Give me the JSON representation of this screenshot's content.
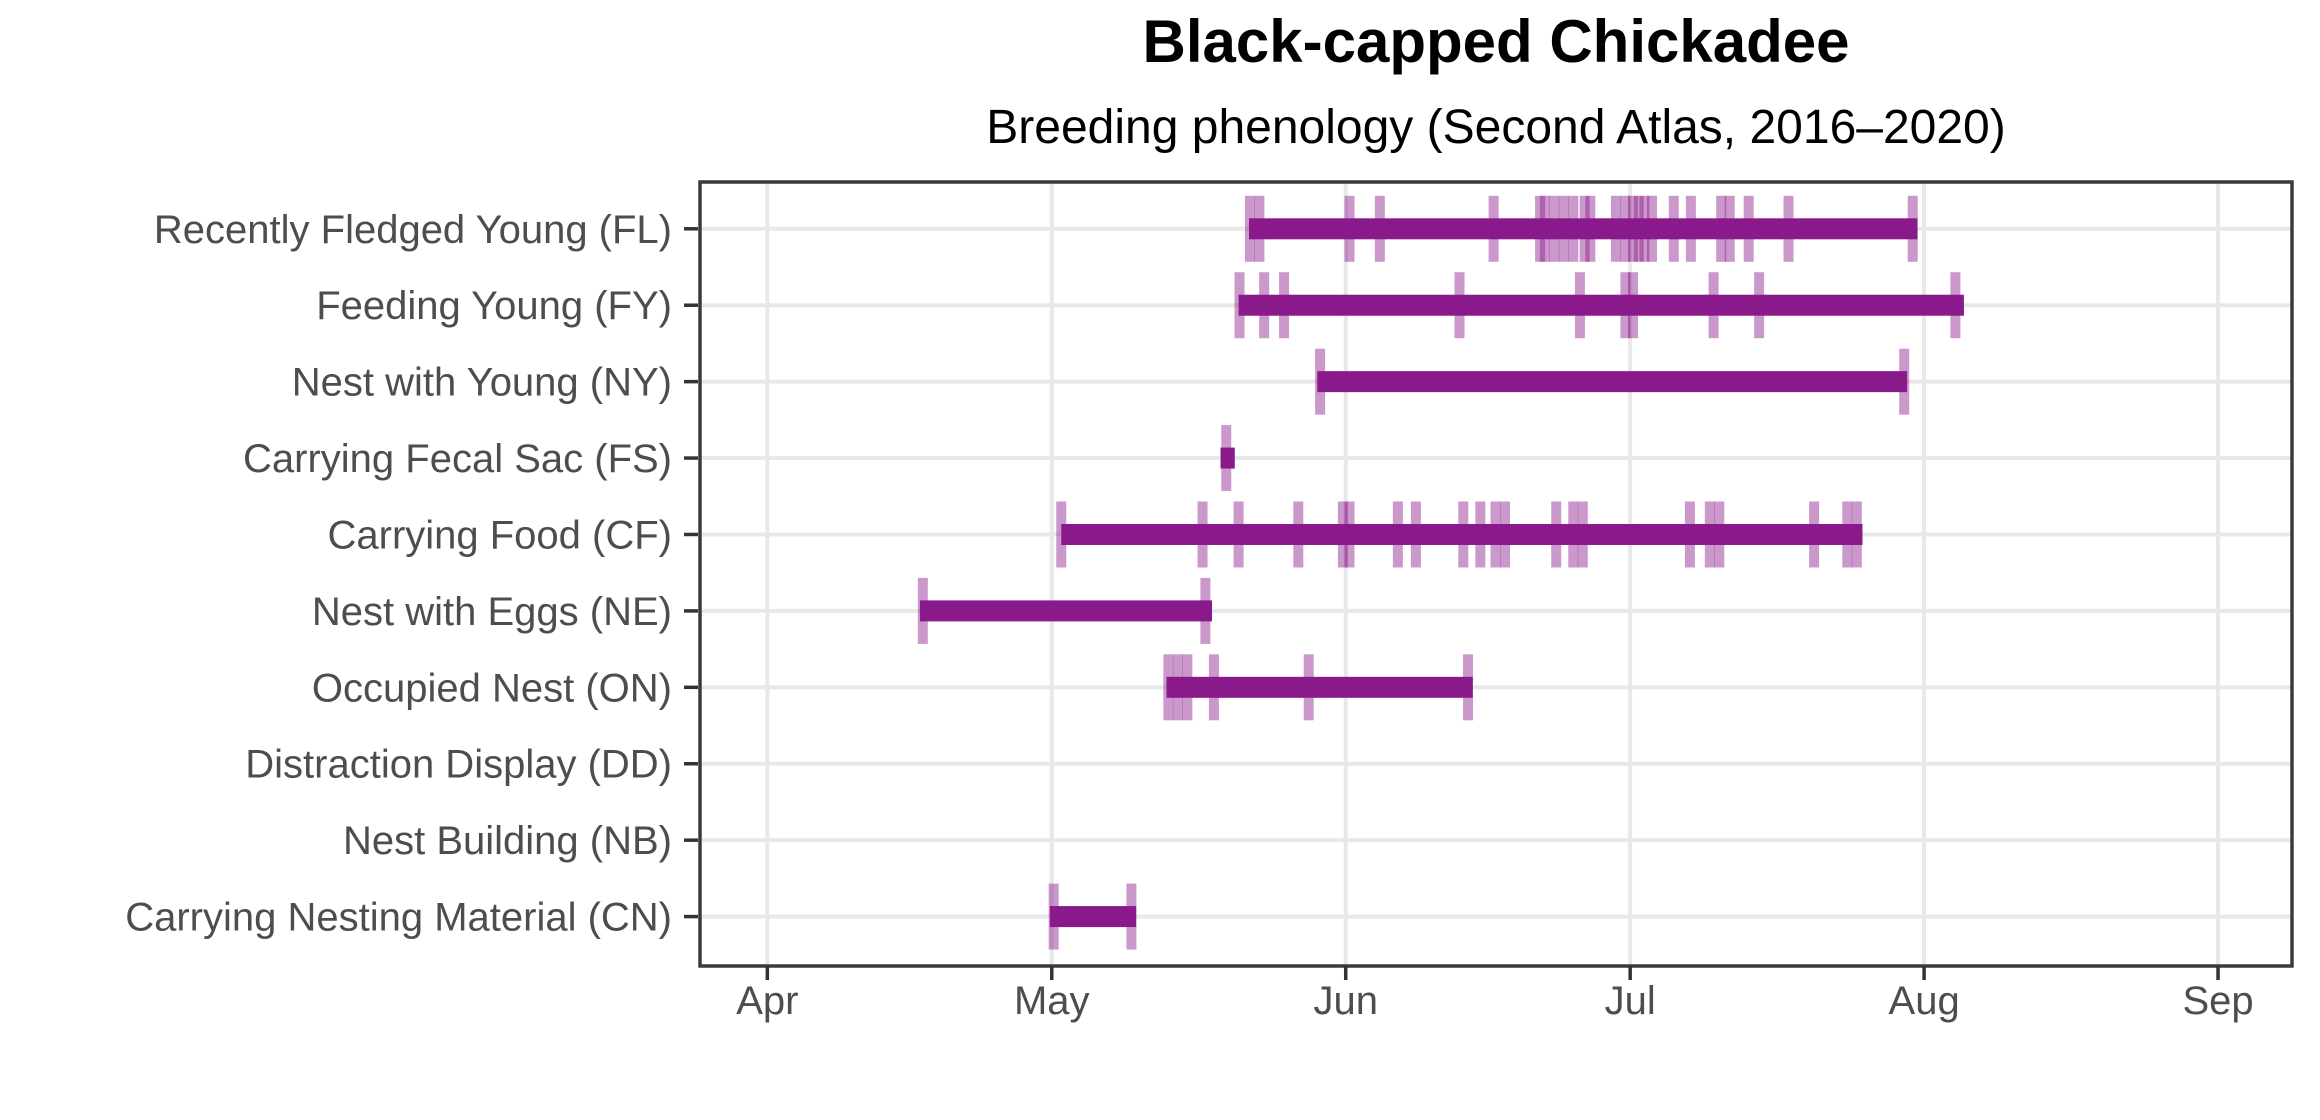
{
  "title": "Black-capped Chickadee",
  "subtitle": "Breeding phenology (Second Atlas, 2016–2020)",
  "chart_data": {
    "type": "range_bar_timeline",
    "title": "Black-capped Chickadee",
    "subtitle": "Breeding phenology (Second Atlas, 2016–2020)",
    "x_axis": {
      "unit": "day_of_year",
      "tick_labels": [
        "Apr",
        "May",
        "Jun",
        "Jul",
        "Aug",
        "Sep"
      ],
      "tick_days": [
        91,
        121,
        152,
        182,
        213,
        244
      ],
      "domain_days": [
        83.9,
        251.8
      ],
      "grid": true
    },
    "y_axis": {
      "grid": true
    },
    "colors": {
      "bar": "#8A1A8B",
      "observation_tick": "rgba(139,27,139,0.45)",
      "gridline": "#E8E8E8",
      "panel_border": "#3A3A3A",
      "axis_tick_mark": "#333333",
      "axis_text": "#4D4D4D",
      "background": "#FFFFFF"
    },
    "rows": [
      {
        "code": "FL",
        "label": "Recently Fledged Young (FL)",
        "range": {
          "start_day": 141.8,
          "end_day": 212.3,
          "start_date": "May 22",
          "end_date": "Jul 31"
        },
        "observation_days": [
          141.9,
          142.9,
          152.4,
          155.6,
          167.6,
          172.5,
          173.0,
          174.0,
          175.0,
          176.0,
          177.2,
          177.8,
          180.5,
          181.5,
          182.3,
          182.9,
          183.5,
          184.3,
          186.6,
          188.4,
          191.6,
          192.5,
          194.5,
          198.7,
          211.8
        ]
      },
      {
        "code": "FY",
        "label": "Feeding Young (FY)",
        "range": {
          "start_day": 140.7,
          "end_day": 217.2,
          "start_date": "May 21",
          "end_date": "Aug 5"
        },
        "observation_days": [
          140.8,
          143.4,
          145.5,
          164.0,
          176.7,
          181.5,
          182.3,
          190.8,
          195.6,
          216.3
        ]
      },
      {
        "code": "NY",
        "label": "Nest with Young (NY)",
        "range": {
          "start_day": 149.0,
          "end_day": 211.2,
          "start_date": "May 29",
          "end_date": "Jul 30"
        },
        "observation_days": [
          149.3,
          210.9
        ]
      },
      {
        "code": "FS",
        "label": "Carrying Fecal Sac (FS)",
        "range": {
          "start_day": 138.8,
          "end_day": 140.3,
          "start_date": "May 19",
          "end_date": "May 20"
        },
        "observation_days": [
          139.4
        ]
      },
      {
        "code": "CF",
        "label": "Carrying Food (CF)",
        "range": {
          "start_day": 122.0,
          "end_day": 206.5,
          "start_date": "May 2",
          "end_date": "Jul 25"
        },
        "observation_days": [
          122.0,
          136.9,
          140.7,
          147.0,
          151.7,
          152.4,
          157.5,
          159.4,
          164.4,
          166.2,
          167.8,
          168.8,
          174.2,
          176.0,
          177.0,
          188.3,
          190.4,
          191.4,
          201.4,
          204.9,
          205.9
        ]
      },
      {
        "code": "NE",
        "label": "Nest with Eggs (NE)",
        "range": {
          "start_day": 107.1,
          "end_day": 137.9,
          "start_date": "Apr 17",
          "end_date": "May 18"
        },
        "observation_days": [
          107.4,
          137.2
        ]
      },
      {
        "code": "ON",
        "label": "Occupied Nest (ON)",
        "range": {
          "start_day": 133.1,
          "end_day": 165.4,
          "start_date": "May 13",
          "end_date": "Jun 14"
        },
        "observation_days": [
          133.3,
          134.3,
          135.3,
          138.1,
          148.1,
          164.9
        ]
      },
      {
        "code": "DD",
        "label": "Distraction Display (DD)",
        "range": null,
        "observation_days": []
      },
      {
        "code": "NB",
        "label": "Nest Building (NB)",
        "range": null,
        "observation_days": []
      },
      {
        "code": "CN",
        "label": "Carrying Nesting Material (CN)",
        "range": {
          "start_day": 120.8,
          "end_day": 129.9,
          "start_date": "May 1",
          "end_date": "May 10"
        },
        "observation_days": [
          121.2,
          129.4
        ]
      }
    ]
  }
}
